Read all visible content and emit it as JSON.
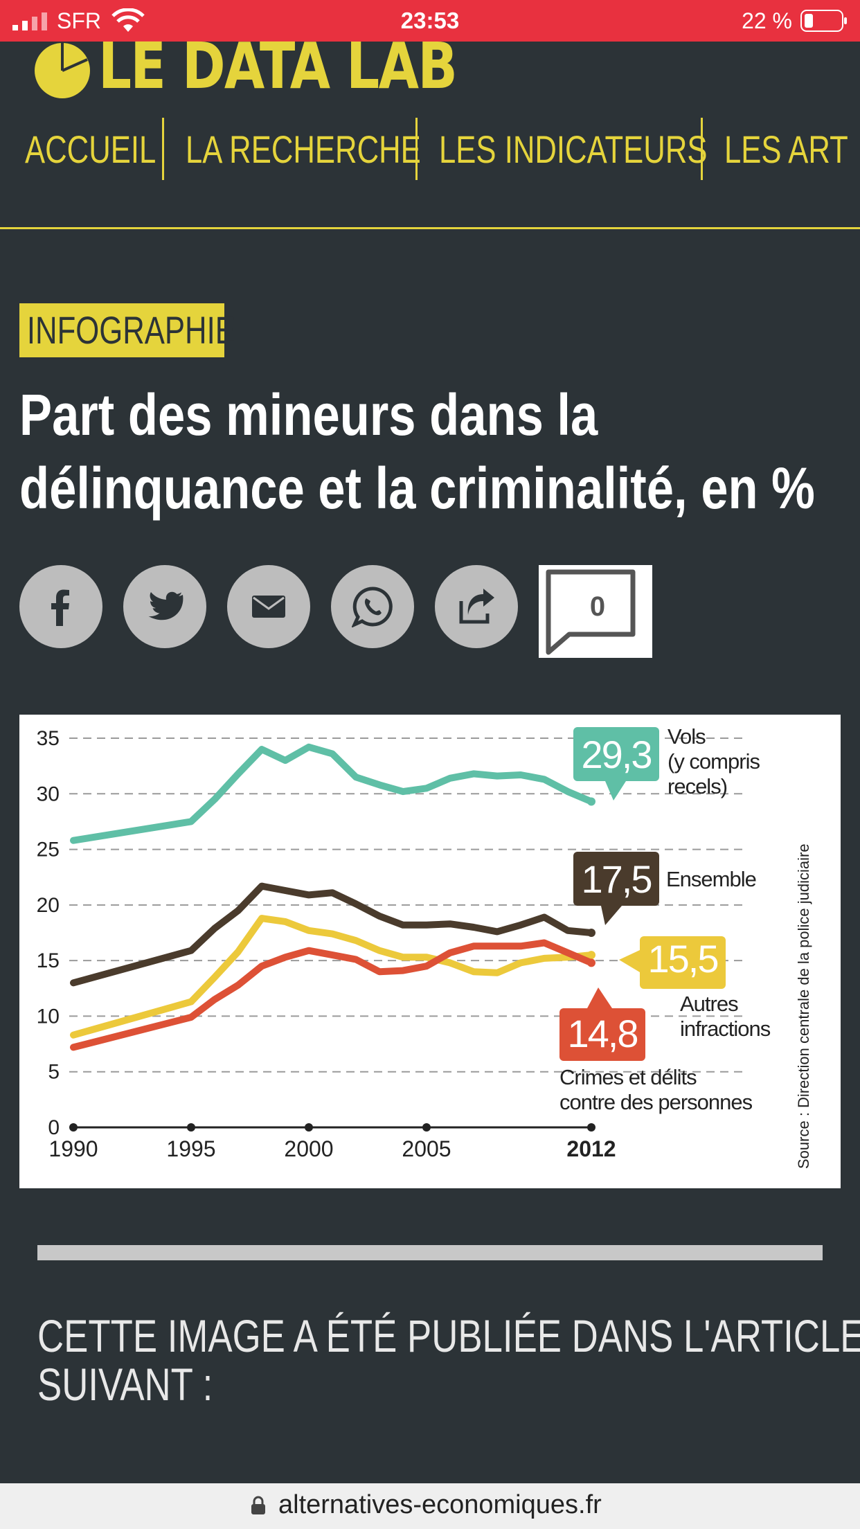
{
  "status": {
    "carrier": "SFR",
    "time": "23:53",
    "battery": "22 %"
  },
  "site": {
    "logo": "LE DATA LAB"
  },
  "nav": [
    "ACCUEIL",
    "LA RECHERCHE",
    "LES INDICATEURS",
    "LES ART"
  ],
  "article": {
    "badge": "INFOGRAPHIE",
    "title_line1": "Part des mineurs dans la",
    "title_line2": "délinquance et la criminalité, en %",
    "comment_count": "0",
    "share_icons": [
      "facebook-icon",
      "twitter-icon",
      "mail-icon",
      "whatsapp-icon",
      "share-icon"
    ]
  },
  "chart_data": {
    "type": "line",
    "x": [
      1990,
      1995,
      1996,
      1997,
      1998,
      1999,
      2000,
      2001,
      2002,
      2003,
      2004,
      2005,
      2006,
      2007,
      2008,
      2009,
      2010,
      2011,
      2012
    ],
    "xticks": [
      "1990",
      "1995",
      "2000",
      "2005",
      "2012"
    ],
    "ylim": [
      0,
      35
    ],
    "yticks": [
      "0",
      "5",
      "10",
      "15",
      "20",
      "25",
      "30",
      "35"
    ],
    "grid": true,
    "source": "Source : Direction centrale de la police judiciaire",
    "series": [
      {
        "name": "Vols (y compris recels)",
        "name_lines": [
          "Vols",
          "(y compris",
          "recels)"
        ],
        "label": "29,3",
        "color": "#5fbfa6",
        "values": [
          25.8,
          27.5,
          29.5,
          31.8,
          34.0,
          33.0,
          34.2,
          33.6,
          31.5,
          30.8,
          30.2,
          30.5,
          31.4,
          31.8,
          31.6,
          31.7,
          31.3,
          30.2,
          29.3
        ]
      },
      {
        "name": "Ensemble",
        "name_lines": [
          "Ensemble"
        ],
        "label": "17,5",
        "color": "#4a3b2c",
        "values": [
          13.0,
          15.9,
          17.9,
          19.5,
          21.7,
          21.3,
          20.9,
          21.1,
          20.1,
          19.0,
          18.2,
          18.2,
          18.3,
          18.0,
          17.6,
          18.2,
          18.9,
          17.7,
          17.5
        ]
      },
      {
        "name": "Autres infractions",
        "name_lines": [
          "Autres",
          "infractions"
        ],
        "label": "15,5",
        "color": "#ecc93b",
        "values": [
          8.3,
          11.3,
          13.5,
          15.8,
          18.8,
          18.5,
          17.7,
          17.4,
          16.8,
          15.9,
          15.3,
          15.3,
          14.8,
          14.0,
          13.9,
          14.8,
          15.2,
          15.3,
          15.5
        ]
      },
      {
        "name": "Crimes et délits contre des personnes",
        "name_lines": [
          "Crimes et délits",
          "contre des personnes"
        ],
        "label": "14,8",
        "color": "#dd5136",
        "values": [
          7.2,
          9.9,
          11.5,
          12.8,
          14.5,
          15.3,
          15.9,
          15.5,
          15.1,
          14.0,
          14.1,
          14.5,
          15.7,
          16.3,
          16.3,
          16.3,
          16.6,
          15.7,
          14.8
        ]
      }
    ]
  },
  "footer": {
    "published_line1": "CETTE IMAGE A ÉTÉ PUBLIÉE DANS L'ARTICLE",
    "published_line2": "SUIVANT :"
  },
  "browser": {
    "url": "alternatives-economiques.fr"
  }
}
